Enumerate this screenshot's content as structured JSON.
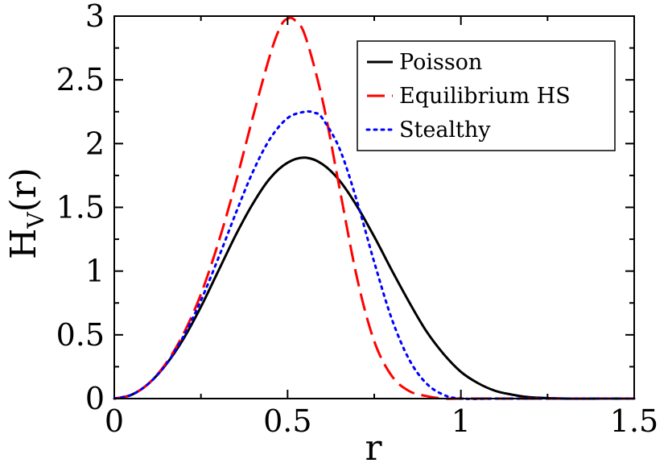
{
  "chart_data": {
    "type": "line",
    "title": "",
    "xlabel": "r",
    "ylabel": "H",
    "ylabel_sub": "V",
    "ylabel_tail": "(r)",
    "xlim": [
      0,
      1.5
    ],
    "ylim": [
      0,
      3
    ],
    "xticks": [
      0,
      0.5,
      1,
      1.5
    ],
    "xtick_labels": [
      "0",
      "0.5",
      "1",
      "1.5"
    ],
    "yticks": [
      0,
      0.5,
      1,
      1.5,
      2,
      2.5,
      3
    ],
    "ytick_labels": [
      "0",
      "0.5",
      "1",
      "1.5",
      "2",
      "2.5",
      "3"
    ],
    "legend_position": "top-right",
    "series": [
      {
        "name": "Poisson",
        "color": "#000000",
        "style": "solid",
        "x": [
          0,
          0.05,
          0.1,
          0.15,
          0.2,
          0.25,
          0.3,
          0.35,
          0.4,
          0.45,
          0.5,
          0.55,
          0.6,
          0.65,
          0.7,
          0.75,
          0.8,
          0.85,
          0.9,
          0.95,
          1.0,
          1.05,
          1.1,
          1.15,
          1.2,
          1.3,
          1.4,
          1.5
        ],
        "y": [
          0,
          0.03,
          0.12,
          0.27,
          0.47,
          0.72,
          1.0,
          1.28,
          1.53,
          1.73,
          1.85,
          1.89,
          1.84,
          1.71,
          1.51,
          1.27,
          1.01,
          0.76,
          0.53,
          0.35,
          0.21,
          0.12,
          0.06,
          0.03,
          0.01,
          0.0,
          0.0,
          0.0
        ]
      },
      {
        "name": "Equilibrium HS",
        "color": "#ff0000",
        "style": "dashed",
        "x": [
          0,
          0.05,
          0.1,
          0.15,
          0.2,
          0.25,
          0.3,
          0.35,
          0.4,
          0.45,
          0.48,
          0.5,
          0.52,
          0.55,
          0.6,
          0.65,
          0.7,
          0.75,
          0.8,
          0.85,
          0.9,
          0.95,
          1.0,
          1.1,
          1.2,
          1.3,
          1.4,
          1.5
        ],
        "y": [
          0,
          0.03,
          0.12,
          0.28,
          0.51,
          0.82,
          1.22,
          1.69,
          2.21,
          2.7,
          2.92,
          2.98,
          2.97,
          2.85,
          2.35,
          1.65,
          0.95,
          0.45,
          0.18,
          0.06,
          0.02,
          0.0,
          0.0,
          0.0,
          0.0,
          0.0,
          0.0,
          0.0
        ]
      },
      {
        "name": "Stealthy",
        "color": "#0000ff",
        "style": "dotted",
        "x": [
          0,
          0.05,
          0.1,
          0.15,
          0.2,
          0.25,
          0.3,
          0.35,
          0.4,
          0.45,
          0.5,
          0.55,
          0.58,
          0.6,
          0.65,
          0.7,
          0.75,
          0.8,
          0.85,
          0.9,
          0.95,
          1.0,
          1.1,
          1.2,
          1.3,
          1.4,
          1.5
        ],
        "y": [
          0,
          0.03,
          0.12,
          0.27,
          0.49,
          0.77,
          1.1,
          1.45,
          1.78,
          2.04,
          2.2,
          2.25,
          2.24,
          2.2,
          1.96,
          1.55,
          1.07,
          0.63,
          0.31,
          0.12,
          0.03,
          0.0,
          0.0,
          0.0,
          0.0,
          0.0,
          0.0
        ]
      }
    ]
  }
}
